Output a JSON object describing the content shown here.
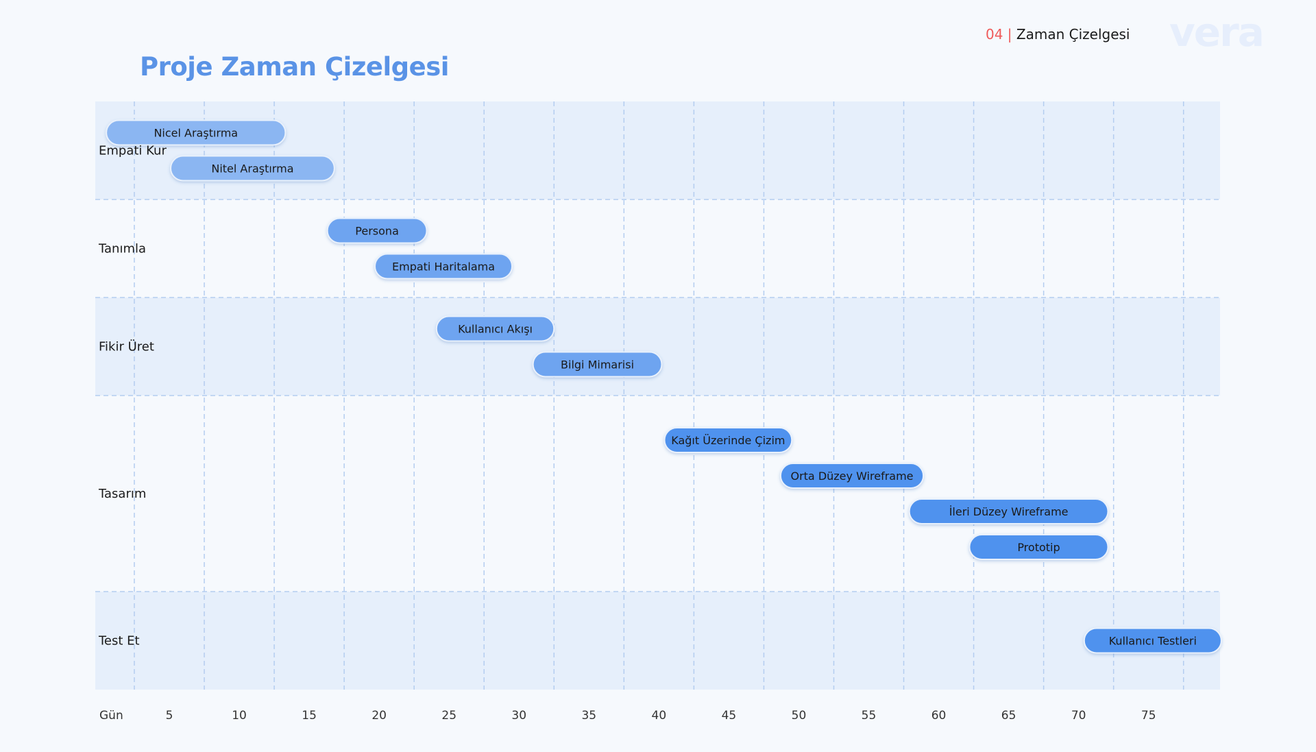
{
  "header": {
    "section_number": "04 |",
    "section_title": "Zaman Çizelgesi",
    "logo_text": "vera"
  },
  "page_title": "Proje Zaman Çizelgesi",
  "colors": {
    "accent": "#5a93e6",
    "band": "#e6effb",
    "grid": "#b4cdf0",
    "bar_light": "#8bb6f2",
    "bar_mid": "#6ea4f0",
    "bar_dark": "#4f92ee",
    "section_number": "#ef5a5a"
  },
  "chart_data": {
    "type": "gantt",
    "x_axis_label": "Gün",
    "x_ticks": [
      5,
      10,
      15,
      20,
      25,
      30,
      35,
      40,
      45,
      50,
      55,
      60,
      65,
      70,
      75
    ],
    "xlim": [
      0,
      80
    ],
    "grid": true,
    "rows": [
      {
        "label": "Empati Kur",
        "banded": true,
        "tasks": [
          {
            "name": "Nicel Araştırma",
            "start": 0.5,
            "end": 13.3
          },
          {
            "name": "Nitel Araştırma",
            "start": 5.1,
            "end": 16.8
          }
        ]
      },
      {
        "label": "Tanımla",
        "banded": false,
        "tasks": [
          {
            "name": "Persona",
            "start": 16.3,
            "end": 23.4
          },
          {
            "name": "Empati Haritalama",
            "start": 19.7,
            "end": 29.5
          }
        ]
      },
      {
        "label": "Fikir Üret",
        "banded": true,
        "tasks": [
          {
            "name": "Kullanıcı Akışı",
            "start": 24.1,
            "end": 32.5
          },
          {
            "name": "Bilgi Mimarisi",
            "start": 31.0,
            "end": 40.2
          }
        ]
      },
      {
        "label": "Tasarım",
        "banded": false,
        "tasks": [
          {
            "name": "Kağıt Üzerinde Çizim",
            "start": 40.4,
            "end": 49.5
          },
          {
            "name": "Orta Düzey Wireframe",
            "start": 48.7,
            "end": 58.9
          },
          {
            "name": "İleri Düzey Wireframe",
            "start": 57.9,
            "end": 72.1
          },
          {
            "name": "Prototip",
            "start": 62.2,
            "end": 72.1
          }
        ]
      },
      {
        "label": "Test Et",
        "banded": true,
        "tasks": [
          {
            "name": "Kullanıcı Testleri",
            "start": 70.4,
            "end": 80.2
          }
        ]
      }
    ]
  }
}
